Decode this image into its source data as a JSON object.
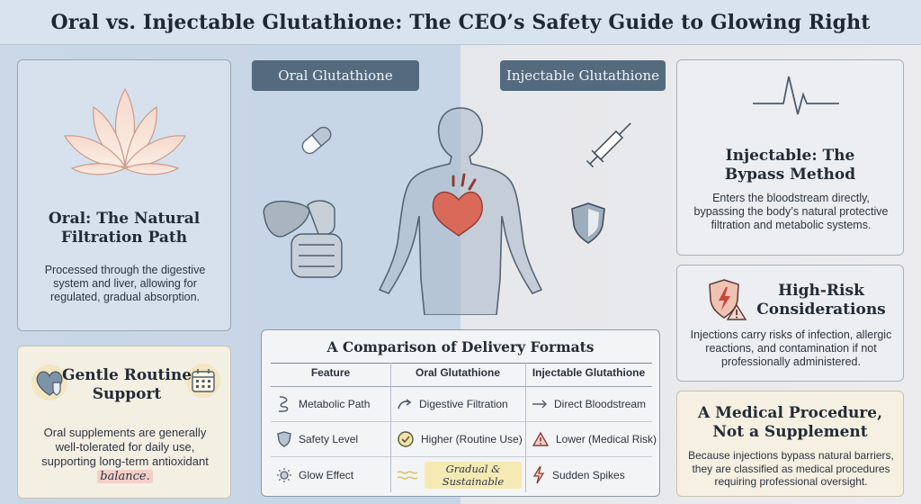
{
  "title": "Oral vs. Injectable Glutathione: The CEO’s Safety Guide to Glowing Right",
  "labels": {
    "oral": "Oral Glutathione",
    "injectable": "Injectable Glutathione"
  },
  "oral_card": {
    "icon": "lotus-icon",
    "heading_line1": "Oral: The Natural",
    "heading_line2": "Filtration Path",
    "text": "Processed through the digestive system and liver, allowing for regulated, gradual absorption."
  },
  "routine_card": {
    "heading_line1": "Gentle Routine",
    "heading_line2": "Support",
    "text": "Oral supplements are generally well-tolerated for daily use, supporting long-term antioxidant",
    "emphasis": "balance."
  },
  "bypass_card": {
    "icon": "heartbeat-icon",
    "heading_line1": "Injectable: The",
    "heading_line2": "Bypass Method",
    "text": "Enters the bloodstream directly, bypassing the body’s natural protective filtration and metabolic systems."
  },
  "risk_card": {
    "heading_line1": "High-Risk",
    "heading_line2": "Considerations",
    "text": "Injections carry risks of infection, allergic reactions, and contamination if not professionally administered."
  },
  "medical_card": {
    "heading_line1": "A Medical Procedure,",
    "heading_line2": "Not a Supplement",
    "text": "Because injections bypass natural barriers, they are classified as medical procedures requiring professional oversight."
  },
  "comparison": {
    "title": "A Comparison of Delivery Formats",
    "headers": [
      "Feature",
      "Oral Glutathione",
      "Injectable Glutathione"
    ],
    "rows": [
      {
        "feature": "Metabolic Path",
        "oral": "Digestive Filtration",
        "injectable": "Direct Bloodstream"
      },
      {
        "feature": "Safety Level",
        "oral": "Higher (Routine Use)",
        "injectable": "Lower (Medical Risk)"
      },
      {
        "feature": "Glow Effect",
        "oral": "Gradual & Sustainable",
        "injectable": "Sudden Spikes"
      }
    ]
  },
  "colors": {
    "pill": "#546a7e",
    "accent_red": "#c9463d",
    "oral_bg": "#c6d6e6",
    "injectable_bg": "#e8e8eb"
  }
}
